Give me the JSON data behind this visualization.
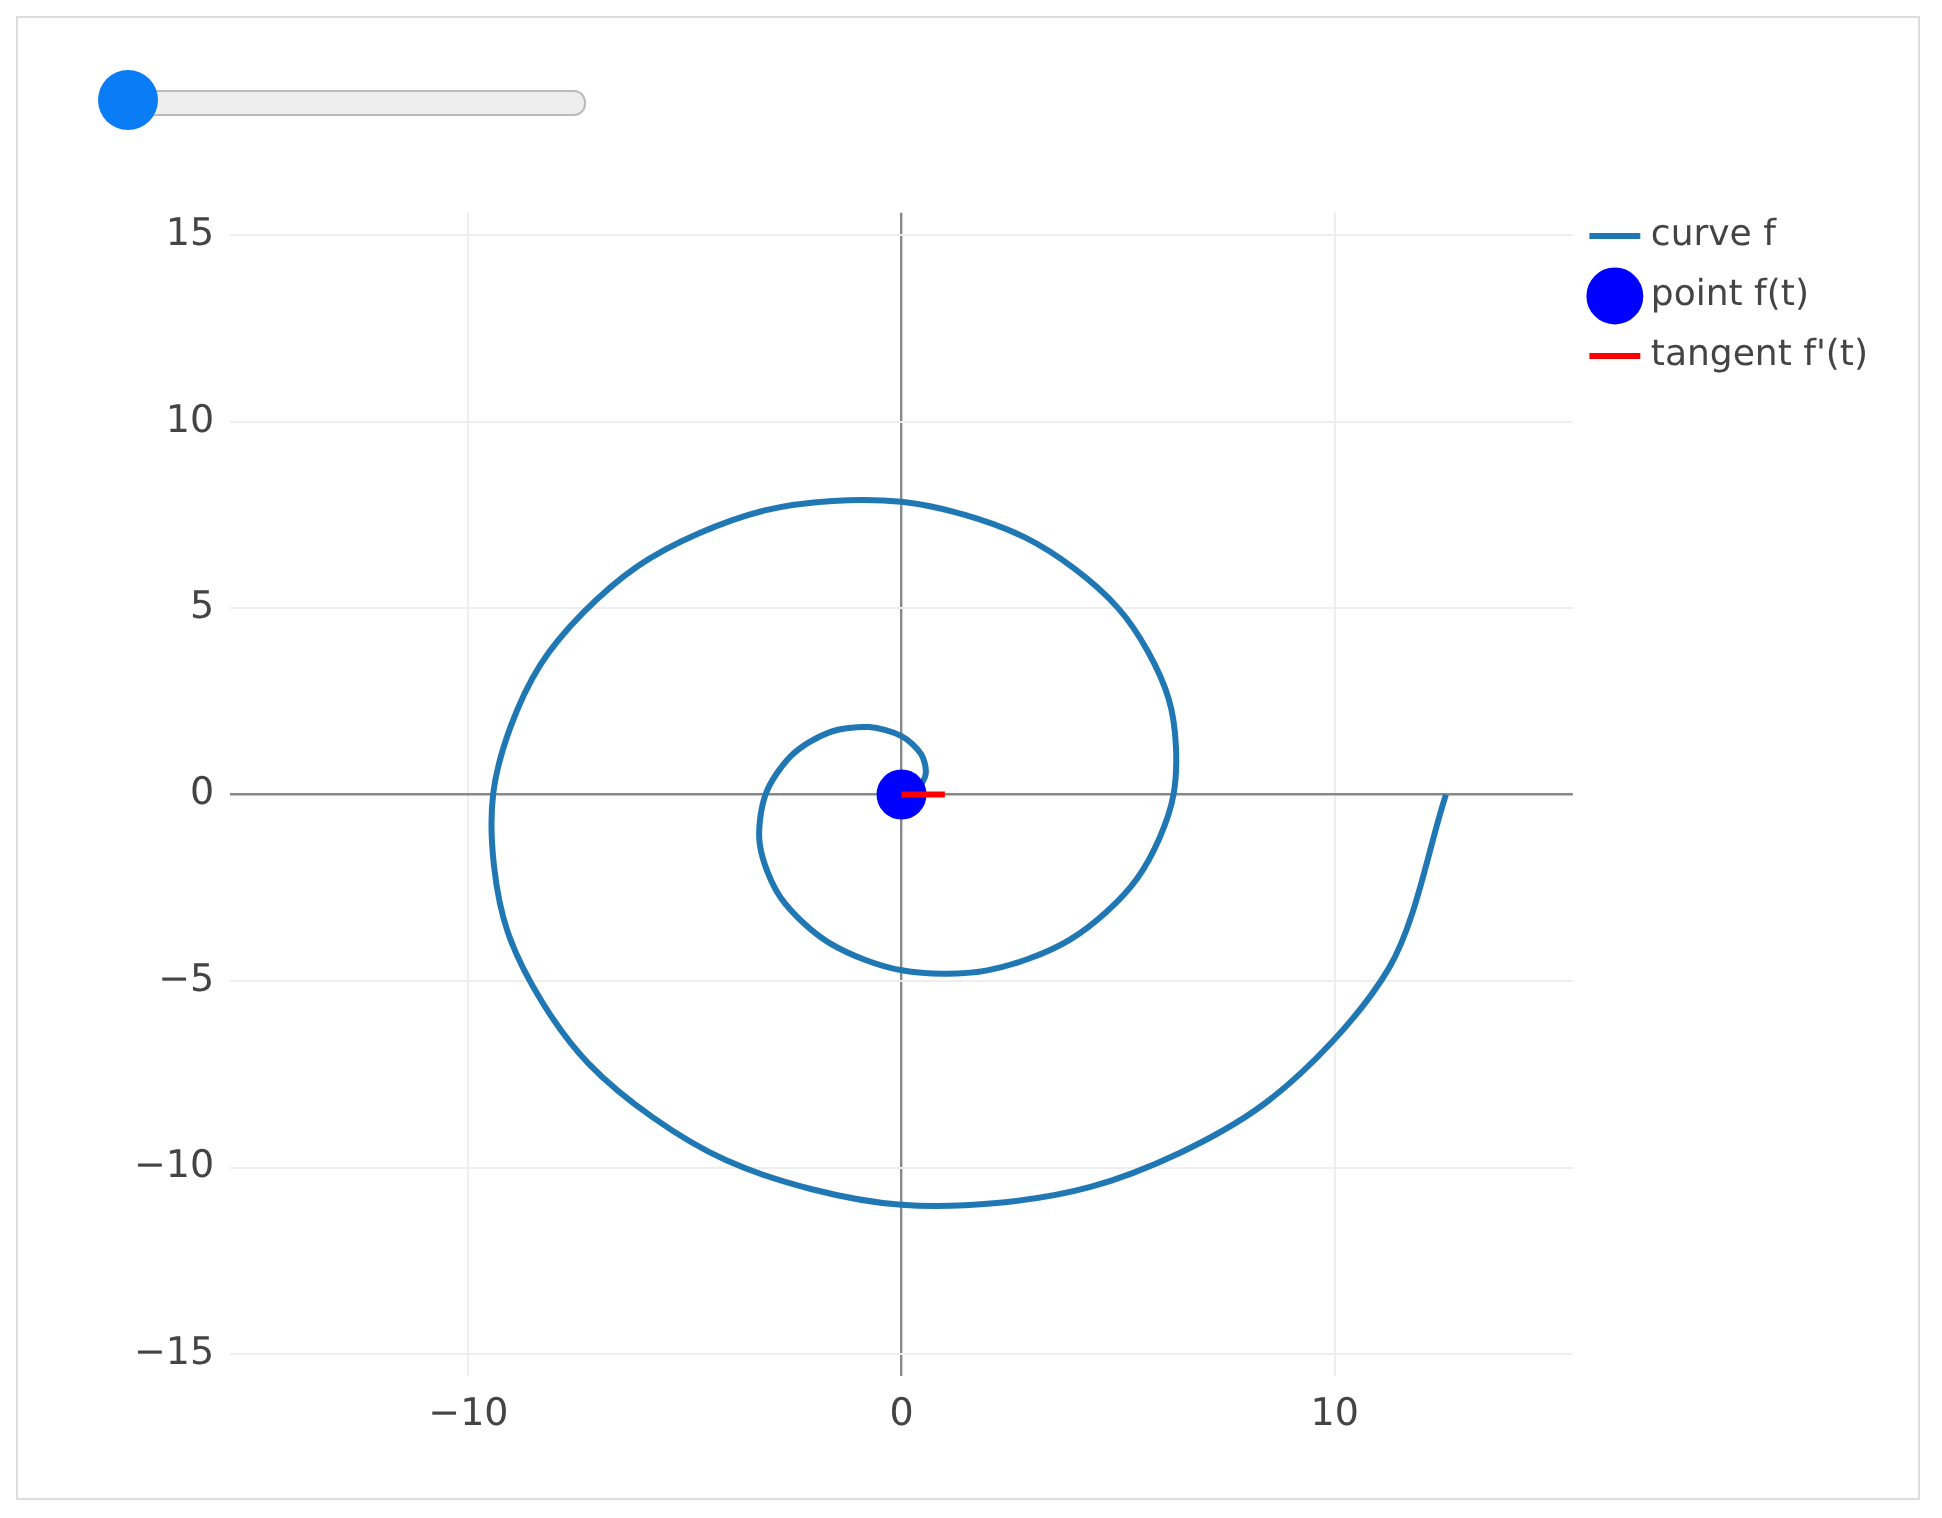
{
  "chart_data": {
    "type": "line",
    "xlim": [
      -15.5,
      15.5
    ],
    "ylim": [
      -15.6,
      15.6
    ],
    "xticks": [
      {
        "value": -10,
        "label": "−10"
      },
      0,
      10
    ],
    "yticks": [
      {
        "value": -15,
        "label": "−15"
      },
      {
        "value": -10,
        "label": "−10"
      },
      {
        "value": -5,
        "label": "−5"
      },
      0,
      5,
      10,
      15
    ],
    "grid": true,
    "legend": "top right",
    "series": [
      {
        "name": "curve f",
        "type": "line",
        "marker": "none",
        "color": "#1f77b4",
        "x": [
          0,
          0.36,
          0.56,
          0.45,
          0,
          -0.75,
          -1.67,
          -2.54,
          -3.14,
          -3.27,
          -2.78,
          -1.65,
          0,
          1.95,
          3.89,
          5.44,
          6.28,
          6.17,
          5.0,
          2.86,
          0,
          -3.16,
          -6.11,
          -8.35,
          -9.43,
          -9.07,
          -7.22,
          -4.06,
          0,
          4.36,
          8.33,
          11.25,
          12.57
        ],
        "values": [
          0,
          0.15,
          0.56,
          1.09,
          1.57,
          1.81,
          1.67,
          1.05,
          0,
          -1.35,
          -2.78,
          -3.99,
          -4.71,
          -4.72,
          -3.89,
          -2.25,
          0,
          2.56,
          5.0,
          6.89,
          7.85,
          7.62,
          6.11,
          3.46,
          0,
          -3.76,
          -7.22,
          -9.8,
          -11.0,
          -10.52,
          -8.33,
          -4.66,
          0
        ]
      },
      {
        "name": "point f(t)",
        "type": "scatter",
        "marker": "circle",
        "color": "#0000ff",
        "x": [
          0
        ],
        "values": [
          0
        ]
      },
      {
        "name": "tangent f'(t)",
        "type": "line",
        "marker": "none",
        "color": "#ff0000",
        "x": [
          0,
          1
        ],
        "values": [
          0,
          0
        ]
      }
    ]
  }
}
